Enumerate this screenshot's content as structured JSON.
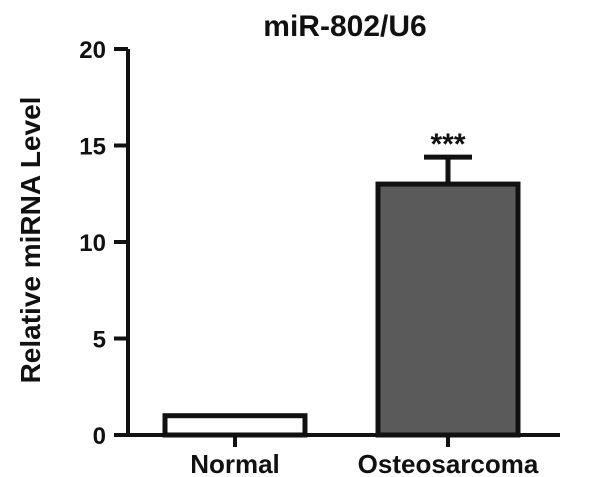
{
  "chart_data": {
    "type": "bar",
    "title": "miR-802/U6",
    "xlabel": "",
    "ylabel": "Relative miRNA Level",
    "ylim": [
      0,
      20
    ],
    "yticks": [
      0,
      5,
      10,
      15,
      20
    ],
    "categories": [
      "Normal",
      "Osteosarcoma"
    ],
    "values": [
      1.0,
      13.0
    ],
    "errors": [
      0.1,
      1.4
    ],
    "bar_colors": [
      "#ffffff",
      "#5a5a5a"
    ],
    "significance": [
      "",
      "***"
    ],
    "grid": false,
    "legend": "none"
  }
}
